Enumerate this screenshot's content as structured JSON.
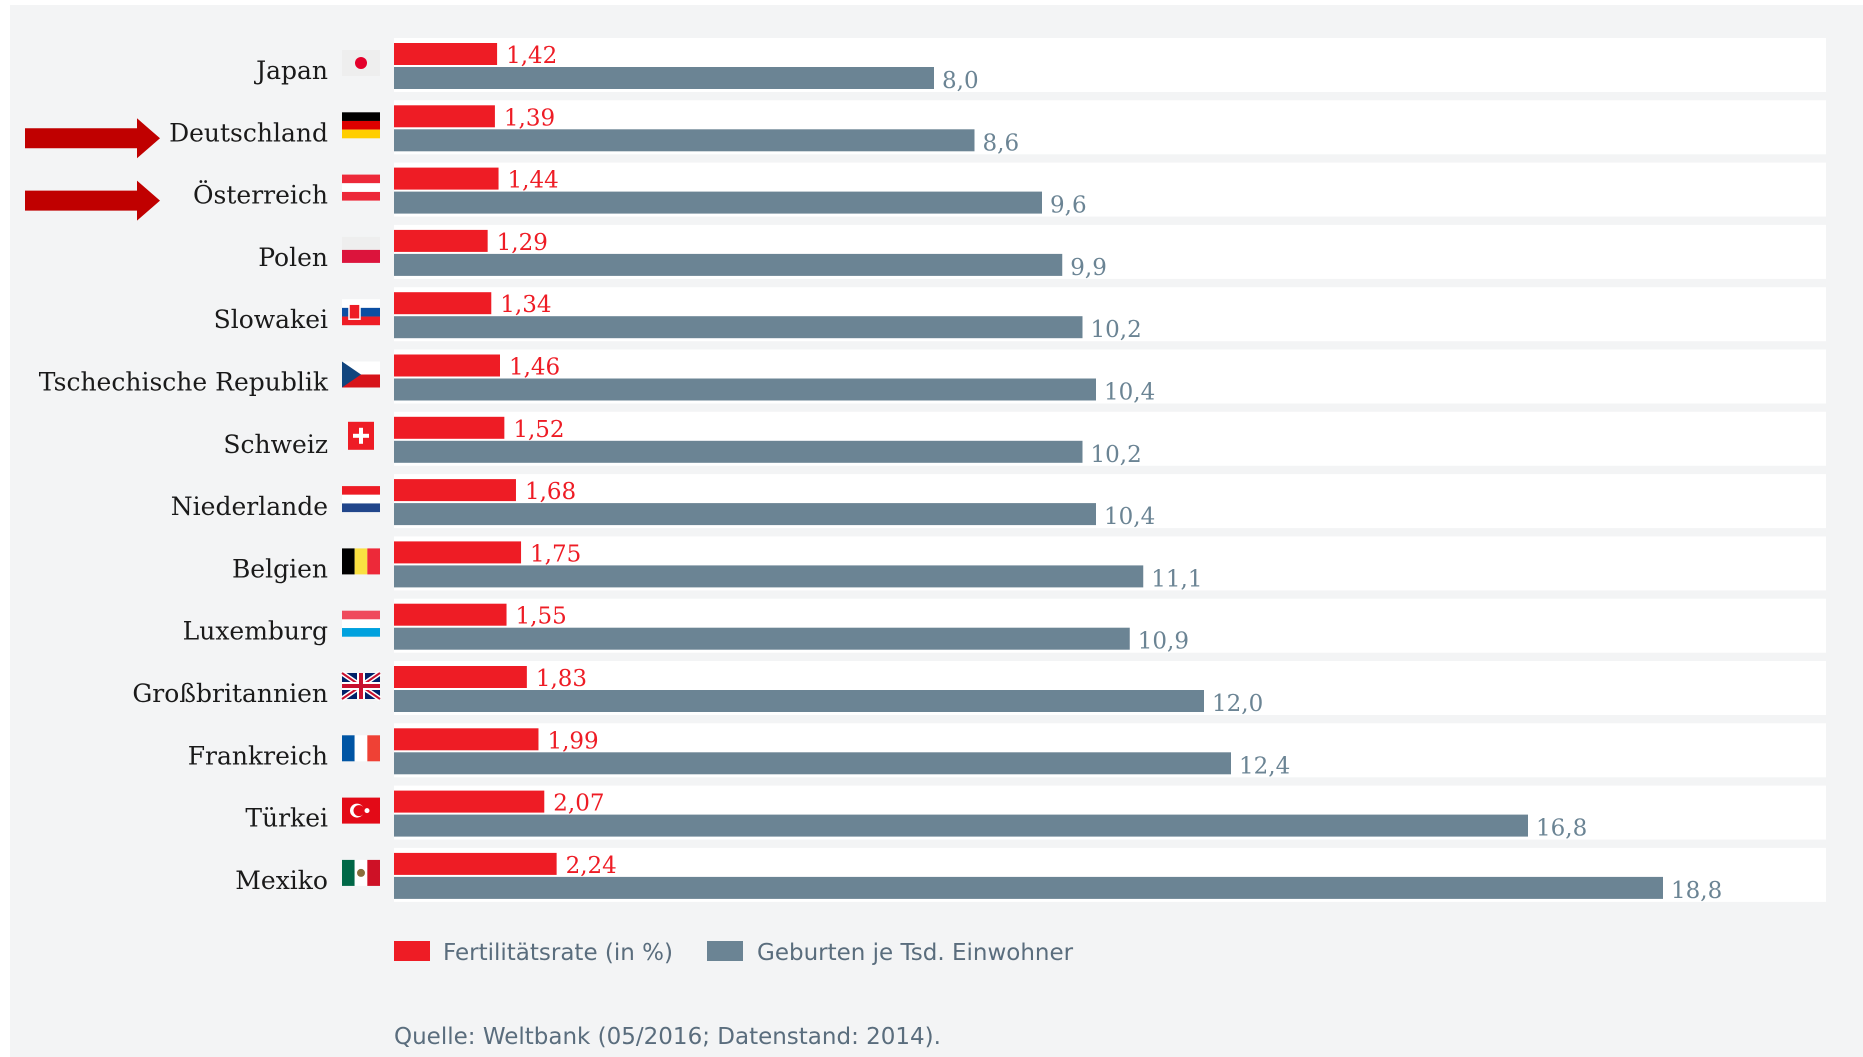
{
  "colors": {
    "background": "#f3f4f5",
    "row_band": "#ffffff",
    "fertility": "#ee1c25",
    "births": "#6b8494",
    "arrow": "#c00000",
    "label": "#1a1a1a",
    "muted": "#5a6d7d"
  },
  "chart_data": {
    "type": "bar",
    "orientation": "horizontal",
    "categories": [
      "Japan",
      "Deutschland",
      "Österreich",
      "Polen",
      "Slowakei",
      "Tschechische Republik",
      "Schweiz",
      "Niederlande",
      "Belgien",
      "Luxemburg",
      "Großbritannien",
      "Frankreich",
      "Türkei",
      "Mexiko"
    ],
    "category_flags": [
      "flag-japan",
      "flag-germany",
      "flag-austria",
      "flag-poland",
      "flag-slovakia",
      "flag-czech-republic",
      "flag-switzerland",
      "flag-netherlands",
      "flag-belgium",
      "flag-luxembourg",
      "flag-united-kingdom",
      "flag-france",
      "flag-turkey",
      "flag-mexico"
    ],
    "highlighted_categories": [
      "Deutschland",
      "Österreich"
    ],
    "series": [
      {
        "name": "Fertilitätsrate (in %)",
        "color": "#ee1c25",
        "values": [
          1.42,
          1.39,
          1.44,
          1.29,
          1.34,
          1.46,
          1.52,
          1.68,
          1.75,
          1.55,
          1.83,
          1.99,
          2.07,
          2.24
        ],
        "labels": [
          "1,42",
          "1,39",
          "1,44",
          "1,29",
          "1,34",
          "1,46",
          "1,52",
          "1,68",
          "1,75",
          "1,55",
          "1,83",
          "1,99",
          "2,07",
          "2,24"
        ],
        "xlim": [
          0,
          4.8
        ]
      },
      {
        "name": "Geburten je Tsd. Einwohner",
        "color": "#6b8494",
        "values": [
          8.0,
          8.6,
          9.6,
          9.9,
          10.2,
          10.4,
          10.2,
          10.4,
          11.1,
          10.9,
          12.0,
          12.4,
          16.8,
          18.8
        ],
        "labels": [
          "8,0",
          "8,6",
          "9,6",
          "9,9",
          "10,2",
          "10,4",
          "10,2",
          "10,4",
          "11,1",
          "10,9",
          "12,0",
          "12,4",
          "16,8",
          "18,8"
        ],
        "xlim": [
          0,
          18.8
        ]
      }
    ],
    "legend_position": "bottom-left",
    "grid": false,
    "source": "Quelle: Weltbank (05/2016; Datenstand: 2014)."
  }
}
